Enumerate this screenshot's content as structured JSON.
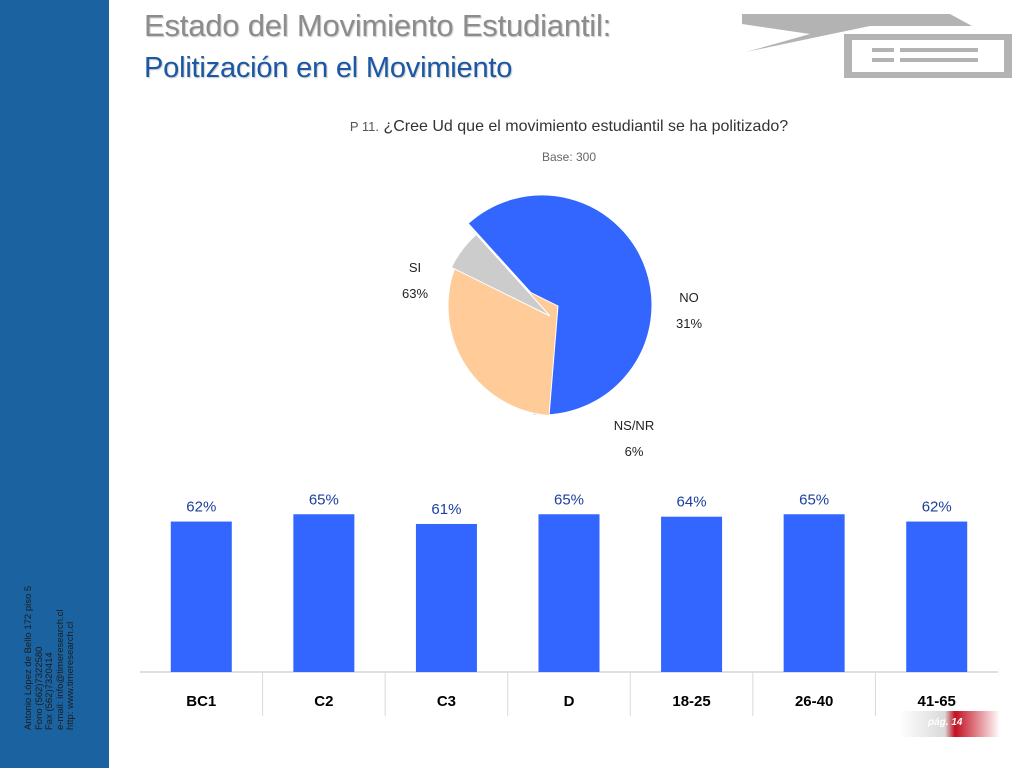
{
  "header": {
    "title_line1": "Estado del Movimiento Estudiantil:",
    "title_line2": "Politización en el Movimiento"
  },
  "question": {
    "number": "P 11.",
    "text": "¿Cree Ud que el movimiento estudiantil se ha politizado?",
    "base": "Base: 300"
  },
  "sidebar": {
    "contact_lines": [
      "Antonio López de Bello 172 piso 5",
      "Fono (562)7322580",
      "Fax (562)7320414",
      "e-mail: info@timeresearch.cl",
      "http: www.timeresearch.cl"
    ]
  },
  "colors": {
    "sidebar": "#1a63a0",
    "bar": "#3366ff",
    "pie_si": "#3366ff",
    "pie_no": "#ffcc99",
    "pie_nsnr": "#cccccc",
    "title_gray": "#8c8c8c",
    "title_blue": "#1a58a6"
  },
  "footer": {
    "page": "pág. 14"
  },
  "chart_data": [
    {
      "type": "pie",
      "slices": [
        {
          "label": "SI",
          "value": 63,
          "display": "63%"
        },
        {
          "label": "NO",
          "value": 31,
          "display": "31%"
        },
        {
          "label": "NS/NR",
          "value": 6,
          "display": "6%"
        }
      ]
    },
    {
      "type": "bar",
      "categories": [
        "BC1",
        "C2",
        "C3",
        "D",
        "18-25",
        "26-40",
        "41-65"
      ],
      "values": [
        62,
        65,
        61,
        65,
        64,
        65,
        62
      ],
      "labels": [
        "62%",
        "65%",
        "61%",
        "65%",
        "64%",
        "65%",
        "62%"
      ],
      "grid": false
    }
  ]
}
